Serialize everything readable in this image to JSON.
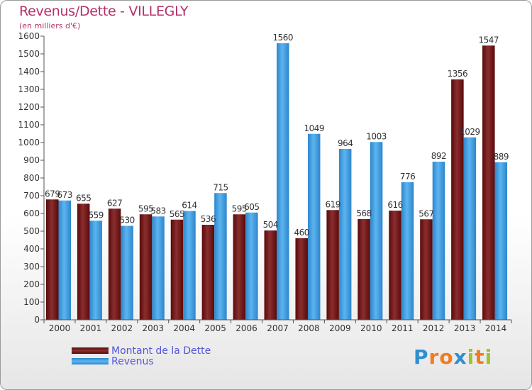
{
  "colors": {
    "dette": "#7a1f1f",
    "revenus": "#4aa6e6",
    "title": "#b3306a",
    "legend_text": "#5555dd"
  },
  "chart_data": {
    "type": "bar",
    "title": "Revenus/Dette - VILLEGLY",
    "subtitle": "(en milliers d'€)",
    "xlabel": "",
    "ylabel": "",
    "ylim": [
      0,
      1600
    ],
    "ytick_step": 100,
    "grid": false,
    "legend_position": "bottom-left",
    "categories": [
      "2000",
      "2001",
      "2002",
      "2003",
      "2004",
      "2005",
      "2006",
      "2007",
      "2008",
      "2009",
      "2010",
      "2011",
      "2012",
      "2013",
      "2014"
    ],
    "series": [
      {
        "name": "Montant de la Dette",
        "values": [
          679,
          655,
          627,
          595,
          565,
          536,
          595,
          504,
          460,
          619,
          568,
          616,
          567,
          1356,
          1547
        ]
      },
      {
        "name": "Revenus",
        "values": [
          673,
          559,
          530,
          583,
          614,
          715,
          605,
          1560,
          1049,
          964,
          1003,
          776,
          892,
          1029,
          889
        ]
      }
    ]
  },
  "logo": {
    "letters": [
      {
        "ch": "P",
        "color": "#2f8fd0"
      },
      {
        "ch": "r",
        "color": "#f07d1e"
      },
      {
        "ch": "o",
        "color": "#f07d1e"
      },
      {
        "ch": "x",
        "color": "#2f8fd0"
      },
      {
        "ch": "i",
        "color": "#9cc52c"
      },
      {
        "ch": "t",
        "color": "#f07d1e"
      },
      {
        "ch": "i",
        "color": "#9cc52c"
      }
    ]
  }
}
